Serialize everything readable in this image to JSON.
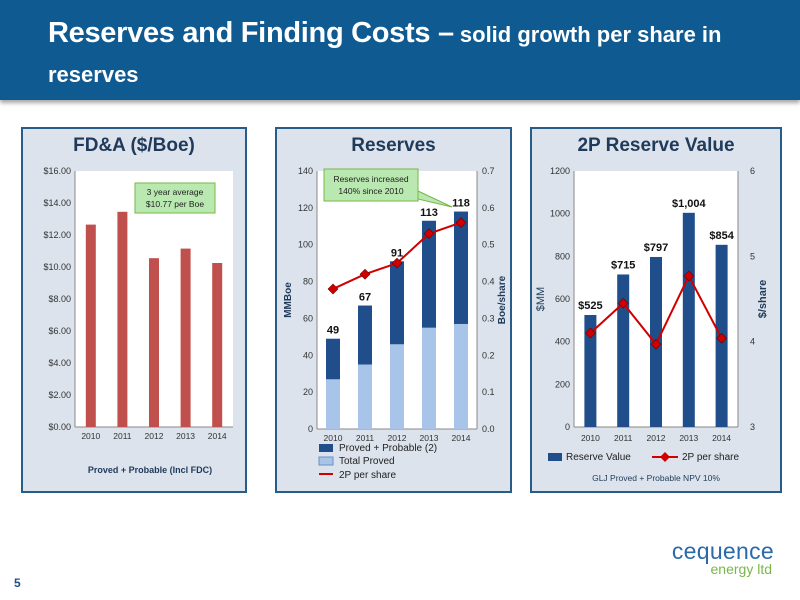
{
  "header": {
    "title_main": "Reserves and Finding Costs –",
    "title_sub": " solid growth per share in reserves"
  },
  "page_number": "5",
  "logo": {
    "main": "cequence",
    "sub": "energy ltd"
  },
  "colors": {
    "header": "#0f5a91",
    "bar_red": "#c0504d",
    "bar_blue": "#1f4e8a",
    "bar_light": "#a8c4e8",
    "line_red": "#d00000",
    "callout": "#b9e8b0"
  },
  "chart_data": [
    {
      "type": "bar",
      "title": "FD&A ($/Boe)",
      "categories": [
        "2010",
        "2011",
        "2012",
        "2013",
        "2014"
      ],
      "values": [
        12.65,
        13.45,
        10.55,
        11.15,
        10.25
      ],
      "ylim": [
        0,
        16
      ],
      "yticks": [
        "$0.00",
        "$2.00",
        "$4.00",
        "$6.00",
        "$8.00",
        "$10.00",
        "$12.00",
        "$14.00",
        "$16.00"
      ],
      "annotation": [
        "3 year average",
        "$10.77 per Boe"
      ],
      "footer": "Proved + Probable (Incl FDC)",
      "grid": false
    },
    {
      "type": "bar",
      "title": "Reserves",
      "categories": [
        "2010",
        "2011",
        "2012",
        "2013",
        "2014"
      ],
      "series": [
        {
          "name": "Proved + Probable (2)",
          "values": [
            49,
            67,
            91,
            113,
            118
          ]
        },
        {
          "name": "Total Proved",
          "values": [
            27,
            35,
            46,
            55,
            57
          ]
        },
        {
          "name": "2P per share",
          "type": "line",
          "axis": "right",
          "values": [
            0.38,
            0.42,
            0.45,
            0.53,
            0.56
          ]
        }
      ],
      "data_labels": [
        "49",
        "67",
        "91",
        "113",
        "118"
      ],
      "ylabel": "MMBoe",
      "ylabel_right": "Boe/share",
      "ylim": [
        0,
        140
      ],
      "ylim_right": [
        0,
        0.7
      ],
      "yticks": [
        "0",
        "20",
        "40",
        "60",
        "80",
        "100",
        "120",
        "140"
      ],
      "yticks_right": [
        "0.0",
        "0.1",
        "0.2",
        "0.3",
        "0.4",
        "0.5",
        "0.6",
        "0.7"
      ],
      "annotation": [
        "Reserves increased",
        "140% since 2010"
      ],
      "legend": "bottom",
      "grid": false
    },
    {
      "type": "bar",
      "title": "2P Reserve Value",
      "categories": [
        "2010",
        "2011",
        "2012",
        "2013",
        "2014"
      ],
      "series": [
        {
          "name": "Reserve Value",
          "values": [
            525,
            715,
            797,
            1004,
            854
          ]
        },
        {
          "name": "2P per share",
          "type": "line",
          "axis": "right",
          "values": [
            4.1,
            4.45,
            3.97,
            4.77,
            4.04
          ]
        }
      ],
      "data_labels": [
        "$525",
        "$715",
        "$797",
        "$1,004",
        "$854"
      ],
      "ylabel": "$MM",
      "ylabel_right": "$/share",
      "ylim": [
        0,
        1200
      ],
      "ylim_right": [
        3,
        6
      ],
      "yticks": [
        "0",
        "200",
        "400",
        "600",
        "800",
        "1000",
        "1200"
      ],
      "yticks_right": [
        "3",
        "4",
        "5",
        "6"
      ],
      "footer": "GLJ Proved + Probable  NPV 10%",
      "legend": "bottom",
      "grid": false
    }
  ]
}
